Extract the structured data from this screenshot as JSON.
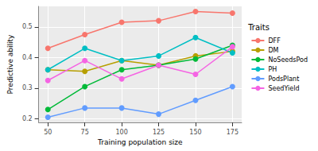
{
  "chart_data": {
    "type": "line",
    "x_label": "Training population size",
    "y_label": "Predictive ability",
    "legend_title": "Traits",
    "x": [
      50,
      75,
      100,
      125,
      150,
      175
    ],
    "series": [
      {
        "name": "DFF",
        "color": "#F8766D",
        "values": [
          0.43,
          0.475,
          0.515,
          0.52,
          0.55,
          0.545
        ]
      },
      {
        "name": "DM",
        "color": "#B79F00",
        "values": [
          0.36,
          0.355,
          0.39,
          0.375,
          0.405,
          0.42
        ]
      },
      {
        "name": "NoSeedsPod",
        "color": "#00BA38",
        "values": [
          0.23,
          0.305,
          0.36,
          0.375,
          0.395,
          0.44
        ]
      },
      {
        "name": "PH",
        "color": "#00BFC4",
        "values": [
          0.36,
          0.43,
          0.39,
          0.405,
          0.465,
          0.415
        ]
      },
      {
        "name": "PodsPlant",
        "color": "#619CFF",
        "values": [
          0.205,
          0.235,
          0.235,
          0.215,
          0.26,
          0.305
        ]
      },
      {
        "name": "SeedYield",
        "color": "#F564E3",
        "values": [
          0.325,
          0.39,
          0.33,
          0.375,
          0.345,
          0.435
        ]
      }
    ],
    "xlim": [
      43.75,
      181.25
    ],
    "xticks": [
      50,
      75,
      100,
      125,
      150,
      175
    ],
    "ylim": [
      0.188,
      0.567
    ],
    "yticks": [
      0.2,
      0.3,
      0.4,
      0.5
    ],
    "grid": true,
    "legend": "right",
    "marker": "circle"
  }
}
